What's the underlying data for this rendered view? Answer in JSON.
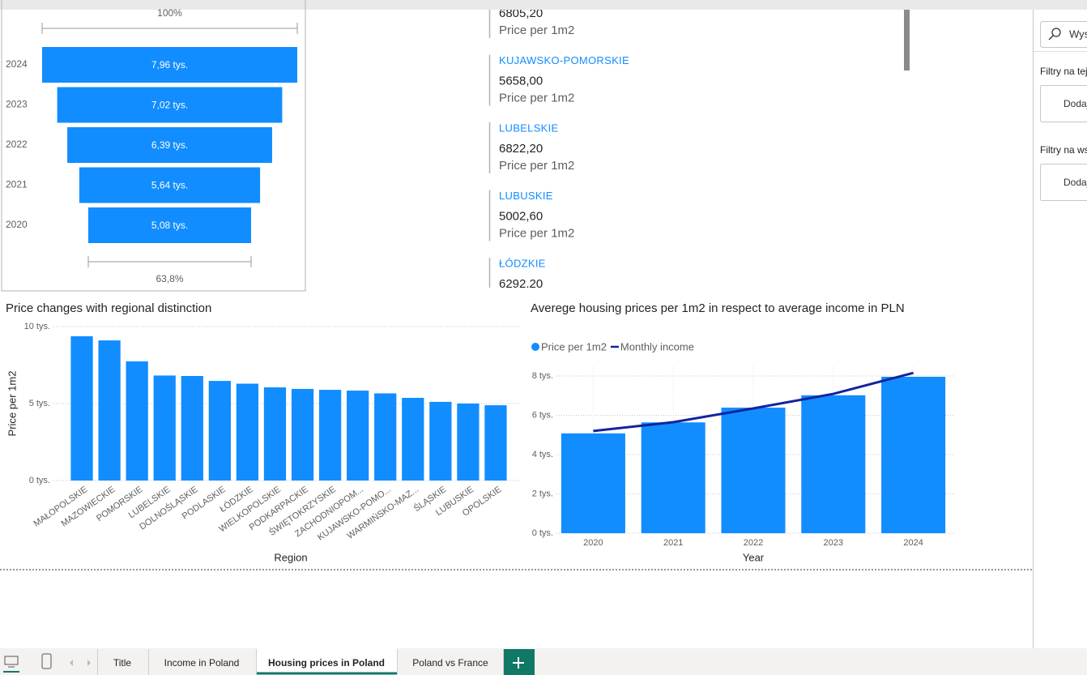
{
  "chart_data": [
    {
      "type": "funnel",
      "categories": [
        "2024",
        "2023",
        "2022",
        "2021",
        "2020"
      ],
      "values": [
        7960,
        7020,
        6390,
        5640,
        5080
      ],
      "value_labels": [
        "7,96 tys.",
        "7,02 tys.",
        "6,39 tys.",
        "5,64 tys.",
        "5,08 tys."
      ],
      "top_label": "100%",
      "bottom_label": "63,8%",
      "color": "#118DFF"
    },
    {
      "type": "bar",
      "title": "Price changes with regional distinction",
      "x_label": "Region",
      "y_label": "Price per 1m2",
      "categories": [
        "MAŁOPOLSKIE",
        "MAZOWIECKIE",
        "POMORSKIE",
        "LUBELSKIE",
        "DOLNOŚLĄSKIE",
        "PODLASKIE",
        "ŁÓDZKIE",
        "WIELKOPOLSKIE",
        "PODKARPACKIE",
        "ŚWIĘTOKRZYSKIE",
        "ZACHODNIOPOM...",
        "KUJAWSKO-POMO...",
        "WARMIŃSKO-MAZ...",
        "ŚLĄSKIE",
        "LUBUSKIE",
        "OPOLSKIE"
      ],
      "values": [
        9370,
        9100,
        7740,
        6820,
        6790,
        6470,
        6290,
        6050,
        5950,
        5890,
        5840,
        5660,
        5370,
        5110,
        5000,
        4890
      ],
      "color": "#118DFF",
      "ylim": [
        0,
        10000
      ],
      "yticks": [
        {
          "value": 0,
          "label": "0 tys."
        },
        {
          "value": 5000,
          "label": "5 tys."
        },
        {
          "value": 10000,
          "label": "10 tys."
        }
      ],
      "grid": true
    },
    {
      "type": "combo",
      "title": "Averege housing prices per 1m2 in respect to average income in PLN",
      "x_label": "Year",
      "categories": [
        "2020",
        "2021",
        "2022",
        "2023",
        "2024"
      ],
      "series": [
        {
          "name": "Price per 1m2",
          "color": "#118DFF",
          "type": "bar",
          "values": [
            5080,
            5640,
            6390,
            7020,
            7960
          ]
        },
        {
          "name": "Monthly income",
          "color": "#12239E",
          "type": "line",
          "values": [
            5200,
            5650,
            6350,
            7090,
            8160
          ]
        }
      ],
      "ylim": [
        0,
        8500
      ],
      "yticks": [
        {
          "value": 0,
          "label": "0 tys."
        },
        {
          "value": 2000,
          "label": "2 tys."
        },
        {
          "value": 4000,
          "label": "4 tys."
        },
        {
          "value": 6000,
          "label": "6 tys."
        },
        {
          "value": 8000,
          "label": "8 tys."
        }
      ],
      "grid": true,
      "legend": "top-left"
    }
  ],
  "cards": [
    {
      "value": "6805,20",
      "label": "Price per 1m2"
    },
    {
      "name": "KUJAWSKO-POMORSKIE",
      "value": "5658,00",
      "label": "Price per 1m2"
    },
    {
      "name": "LUBELSKIE",
      "value": "6822,20",
      "label": "Price per 1m2"
    },
    {
      "name": "LUBUSKIE",
      "value": "5002,60",
      "label": "Price per 1m2"
    },
    {
      "name": "ŁÓDZKIE",
      "value": "6292,20"
    }
  ],
  "filters": {
    "search": "Wyszukaj",
    "page_heading": "Filtry na tej stronie",
    "page_drop": "Dodaj pola danych tutaj",
    "all_heading": "Filtry na wszystkich stronach",
    "all_drop": "Dodaj pola danych tutaj"
  },
  "tabs": [
    "Title",
    "Income in Poland",
    "Housing prices in Poland",
    "Poland vs France"
  ],
  "active_tab": 2
}
